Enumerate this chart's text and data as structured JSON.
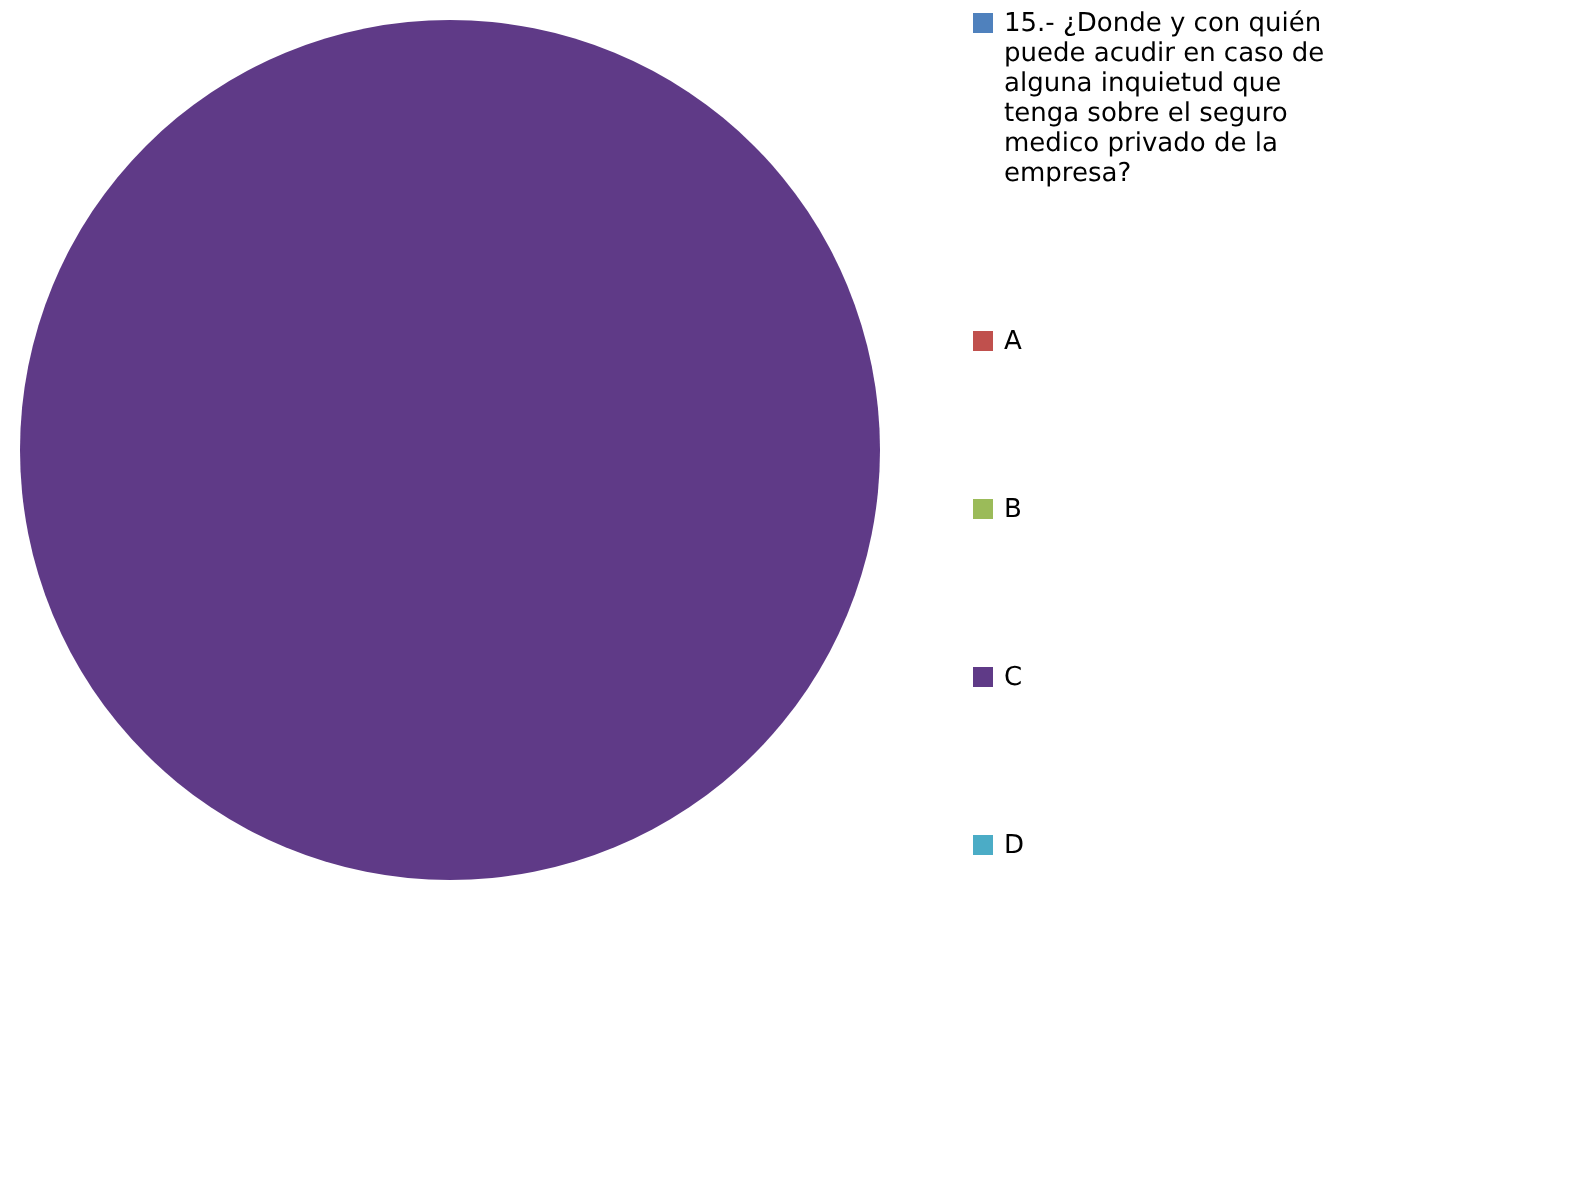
{
  "chart_data": {
    "type": "pie",
    "categories": [
      "15.- ¿Donde y con quién puede acudir en caso de alguna inquietud que tenga sobre el seguro medico privado de la empresa?",
      "A",
      "B",
      "C",
      "D"
    ],
    "values": [
      0,
      0,
      0,
      100,
      0
    ],
    "colors": [
      "#4f81bd",
      "#c0504d",
      "#9bbb59",
      "#5f3a87",
      "#4bacc6"
    ],
    "legend": "right"
  }
}
